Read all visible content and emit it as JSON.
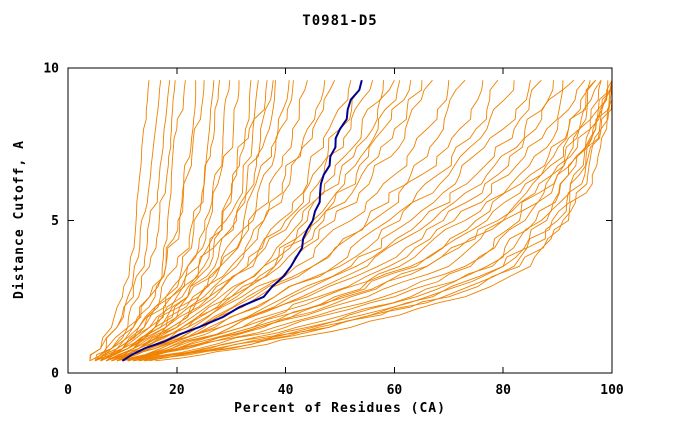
{
  "chart_data": {
    "type": "line",
    "title": "T0981-D5",
    "xlabel": "Percent of Residues (CA)",
    "ylabel": "Distance Cutoff, A",
    "xlim": [
      0,
      100
    ],
    "ylim": [
      0,
      10
    ],
    "x_ticks": [
      0,
      20,
      40,
      60,
      80,
      100
    ],
    "y_ticks": [
      0,
      5,
      10
    ],
    "grid": false,
    "legend": "none",
    "colors": {
      "models": "#ef8200",
      "highlight": "#000090",
      "axis": "#000000",
      "background": "#ffffff"
    },
    "y_levels": [
      0.4,
      0.8,
      1.5,
      2.5,
      3.5,
      5.0,
      6.5,
      8.0,
      9.6
    ],
    "highlight_series": {
      "name": "highlighted-model",
      "x": [
        10,
        14,
        24,
        36,
        41,
        45,
        47,
        50,
        54
      ]
    },
    "model_series": [
      [
        4,
        6,
        8,
        10,
        11,
        12,
        13,
        13,
        14
      ],
      [
        5,
        7,
        9,
        11,
        12,
        13,
        14,
        15,
        15
      ],
      [
        4,
        6,
        9,
        12,
        14,
        15,
        16,
        17,
        17
      ],
      [
        5,
        8,
        11,
        13,
        15,
        16,
        17,
        18,
        19
      ],
      [
        6,
        9,
        12,
        15,
        17,
        18,
        19,
        20,
        21
      ],
      [
        5,
        8,
        12,
        16,
        18,
        20,
        21,
        22,
        22
      ],
      [
        4,
        7,
        11,
        15,
        18,
        20,
        22,
        23,
        24
      ],
      [
        6,
        10,
        14,
        18,
        21,
        23,
        24,
        25,
        26
      ],
      [
        5,
        9,
        13,
        17,
        20,
        23,
        25,
        26,
        27
      ],
      [
        6,
        10,
        15,
        19,
        22,
        25,
        27,
        28,
        29
      ],
      [
        5,
        8,
        13,
        18,
        22,
        26,
        28,
        30,
        31
      ],
      [
        7,
        11,
        16,
        21,
        25,
        28,
        30,
        32,
        33
      ],
      [
        6,
        10,
        15,
        20,
        24,
        28,
        31,
        33,
        35
      ],
      [
        5,
        9,
        14,
        19,
        24,
        29,
        32,
        34,
        36
      ],
      [
        7,
        12,
        17,
        22,
        26,
        30,
        33,
        35,
        37
      ],
      [
        6,
        11,
        16,
        22,
        27,
        31,
        34,
        37,
        38
      ],
      [
        8,
        13,
        19,
        24,
        28,
        32,
        35,
        38,
        40
      ],
      [
        7,
        12,
        18,
        23,
        28,
        33,
        36,
        39,
        41
      ],
      [
        6,
        10,
        16,
        22,
        28,
        34,
        38,
        41,
        44
      ],
      [
        7,
        12,
        18,
        25,
        31,
        36,
        40,
        44,
        47
      ],
      [
        6,
        11,
        17,
        24,
        30,
        36,
        41,
        45,
        49
      ],
      [
        8,
        13,
        20,
        27,
        33,
        39,
        44,
        48,
        52
      ],
      [
        7,
        12,
        19,
        26,
        33,
        40,
        45,
        50,
        54
      ],
      [
        6,
        11,
        18,
        26,
        34,
        41,
        47,
        52,
        56
      ],
      [
        8,
        14,
        21,
        29,
        36,
        43,
        49,
        54,
        58
      ],
      [
        7,
        13,
        20,
        28,
        36,
        44,
        50,
        56,
        60
      ],
      [
        9,
        15,
        23,
        31,
        38,
        45,
        51,
        57,
        61
      ],
      [
        8,
        14,
        22,
        30,
        38,
        46,
        53,
        58,
        63
      ],
      [
        7,
        13,
        21,
        30,
        39,
        47,
        54,
        60,
        65
      ],
      [
        9,
        16,
        24,
        33,
        41,
        49,
        56,
        62,
        67
      ],
      [
        8,
        14,
        22,
        32,
        42,
        52,
        60,
        66,
        70
      ],
      [
        9,
        16,
        25,
        35,
        45,
        55,
        63,
        69,
        73
      ],
      [
        8,
        15,
        24,
        34,
        45,
        56,
        65,
        72,
        76
      ],
      [
        10,
        17,
        27,
        38,
        49,
        59,
        68,
        75,
        79
      ],
      [
        9,
        16,
        26,
        38,
        50,
        61,
        70,
        77,
        82
      ],
      [
        10,
        18,
        28,
        40,
        52,
        63,
        72,
        80,
        85
      ],
      [
        9,
        17,
        28,
        41,
        53,
        65,
        75,
        82,
        87
      ],
      [
        11,
        19,
        30,
        43,
        55,
        67,
        77,
        84,
        89
      ],
      [
        10,
        18,
        30,
        44,
        57,
        69,
        79,
        86,
        91
      ],
      [
        11,
        20,
        32,
        46,
        59,
        71,
        81,
        88,
        93
      ],
      [
        10,
        19,
        32,
        47,
        61,
        73,
        83,
        90,
        95
      ],
      [
        12,
        21,
        34,
        49,
        63,
        75,
        85,
        92,
        97
      ],
      [
        11,
        20,
        34,
        50,
        64,
        77,
        87,
        94,
        98
      ],
      [
        12,
        22,
        36,
        52,
        66,
        79,
        89,
        96,
        100
      ],
      [
        11,
        21,
        35,
        51,
        66,
        80,
        90,
        97,
        100
      ],
      [
        10,
        20,
        35,
        55,
        70,
        80,
        87,
        92,
        96
      ],
      [
        12,
        24,
        40,
        60,
        74,
        84,
        90,
        94,
        98
      ],
      [
        11,
        22,
        38,
        58,
        73,
        83,
        89,
        94,
        97
      ],
      [
        13,
        26,
        44,
        64,
        78,
        87,
        92,
        96,
        99
      ],
      [
        12,
        25,
        42,
        63,
        77,
        86,
        92,
        96,
        100
      ],
      [
        14,
        28,
        46,
        67,
        80,
        89,
        94,
        97,
        100
      ],
      [
        13,
        27,
        45,
        66,
        80,
        88,
        93,
        97,
        100
      ],
      [
        15,
        30,
        48,
        69,
        82,
        90,
        95,
        98,
        100
      ],
      [
        14,
        29,
        48,
        70,
        83,
        91,
        95,
        98,
        100
      ],
      [
        16,
        32,
        52,
        73,
        85,
        92,
        96,
        99,
        100
      ]
    ]
  }
}
